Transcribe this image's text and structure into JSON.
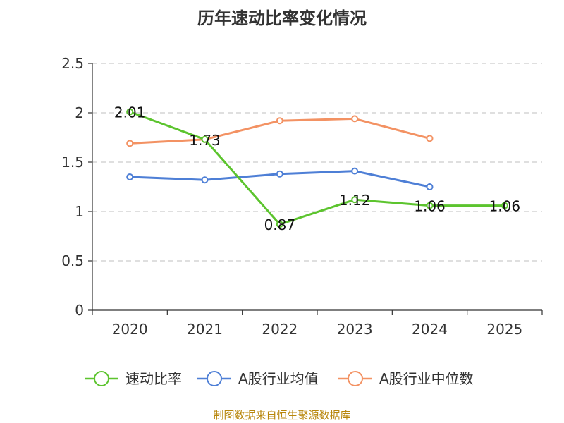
{
  "chart_data": {
    "type": "line",
    "title": "历年速动比率变化情况",
    "categories": [
      "2020",
      "2021",
      "2022",
      "2023",
      "2024",
      "2025"
    ],
    "ylim": [
      0,
      2.5
    ],
    "yticks": [
      "0",
      "0.5",
      "1",
      "1.5",
      "2",
      "2.5"
    ],
    "xlabel": "",
    "ylabel": "",
    "grid": true,
    "legend_position": "bottom",
    "series": [
      {
        "name": "速动比率",
        "color": "#5cc42e",
        "values": [
          2.01,
          1.73,
          0.87,
          1.12,
          1.06,
          1.06
        ],
        "labels": [
          "2.01",
          "1.73",
          "0.87",
          "1.12",
          "1.06",
          "1.06"
        ]
      },
      {
        "name": "A股行业均值",
        "color": "#4e7fd6",
        "values": [
          1.35,
          1.32,
          1.38,
          1.41,
          1.25,
          null
        ]
      },
      {
        "name": "A股行业中位数",
        "color": "#f39263",
        "values": [
          1.69,
          1.73,
          1.92,
          1.94,
          1.74,
          null
        ]
      }
    ]
  },
  "footer": {
    "source": "制图数据来自恒生聚源数据库"
  }
}
